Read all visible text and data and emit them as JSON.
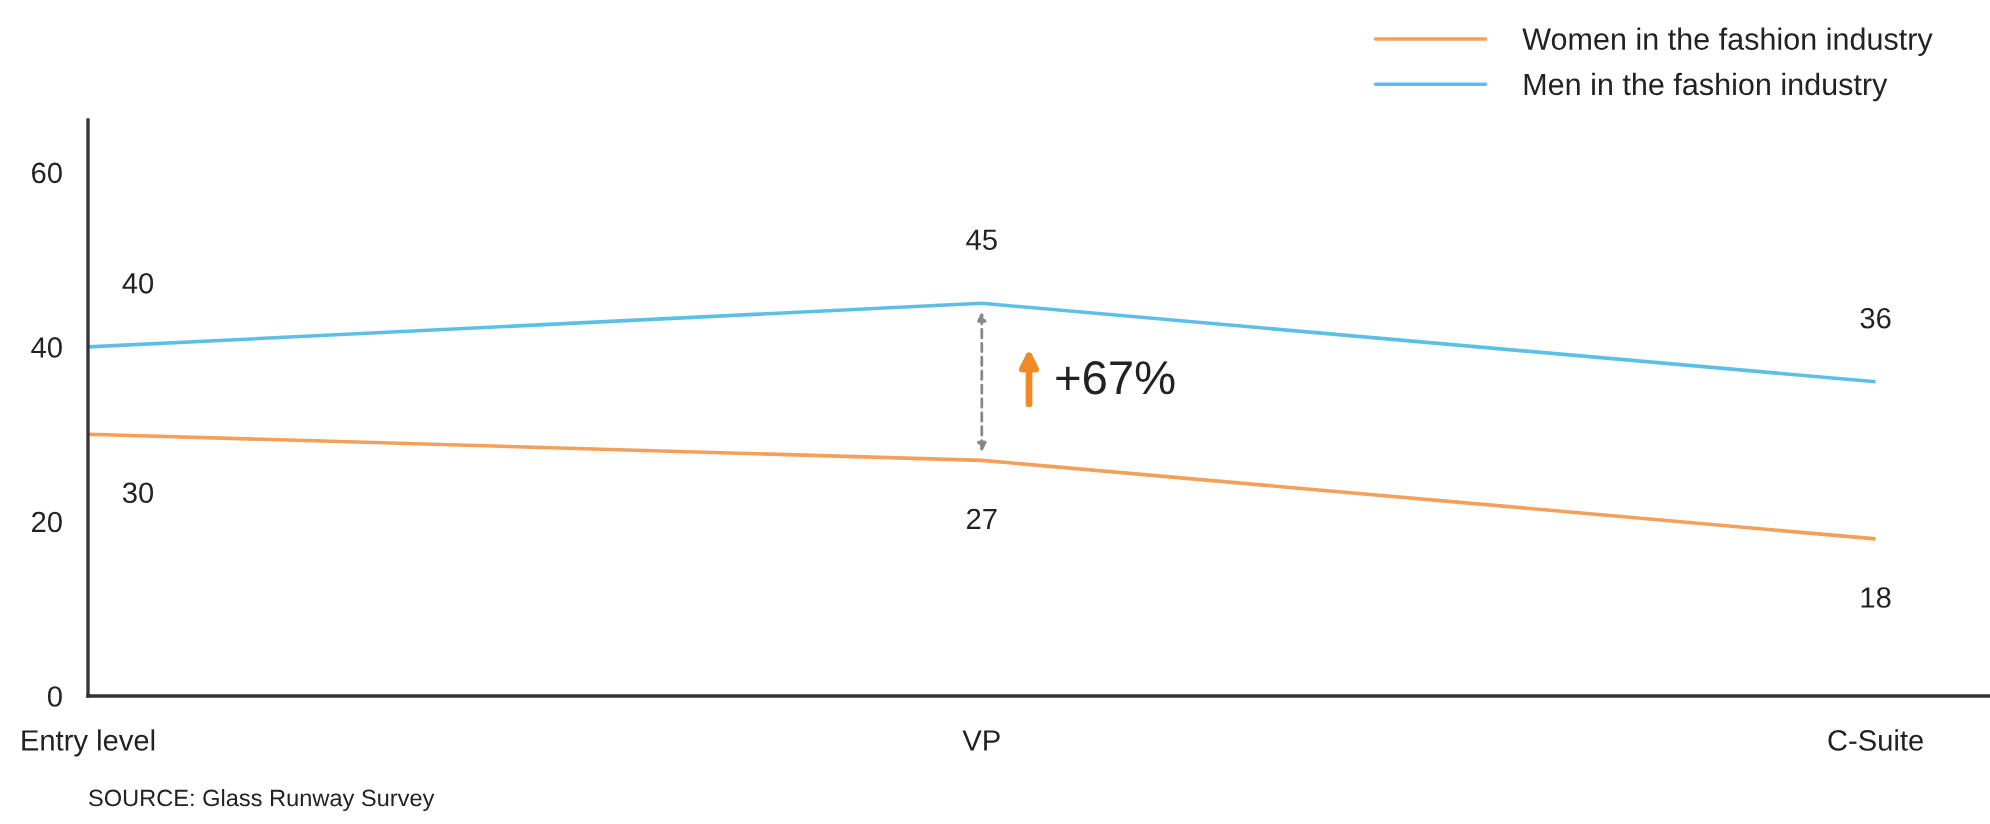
{
  "chart_data": {
    "type": "line",
    "categories": [
      "Entry level",
      "VP",
      "C-Suite"
    ],
    "series": [
      {
        "name": "Women in the fashion industry",
        "color": "#f4a05a",
        "values": [
          30,
          27,
          18
        ]
      },
      {
        "name": "Men in the fashion industry",
        "color": "#5cc0e6",
        "values": [
          40,
          45,
          36
        ]
      }
    ],
    "ylim": [
      0,
      66
    ],
    "yticks": [
      0,
      20,
      40,
      60
    ],
    "data_labels": true,
    "legend": "top right",
    "line_style": "solid",
    "annotations": [
      "+67%",
      "SOURCE: Glass Runway Survey"
    ]
  }
}
